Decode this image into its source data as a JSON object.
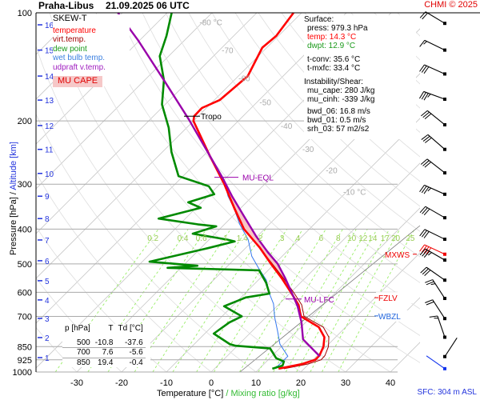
{
  "header": {
    "station": "Praha-Libus",
    "datetime": "21.09.2025 06 UTC",
    "credit": "CHMI © 2025"
  },
  "legend": {
    "title": "SKEW-T",
    "items": [
      {
        "label": "temperature",
        "color": "#ff0000"
      },
      {
        "label": "virt.temp.",
        "color": "#a00000"
      },
      {
        "label": "dew point",
        "color": "#1a9a1a"
      },
      {
        "label": "wet bulb temp.",
        "color": "#3a7fe0"
      },
      {
        "label": "udpraft v.temp.",
        "color": "#a020c0"
      }
    ],
    "cape_label": "MU CAPE"
  },
  "info": {
    "surface_title": "Surface:",
    "press": "press: 979.3 hPa",
    "temp": "temp: 14.3 °C",
    "dwpt": "dwpt: 12.9 °C",
    "tconv": "t-conv: 35.6 °C",
    "tmxfc": "t-mxfc: 33.4 °C",
    "instab_title": "Instability/Shear:",
    "mu_cape": "mu_cape: 280 J/kg",
    "mu_cinh": "mu_cinh: -339 J/kg",
    "bwd_06": "bwd_06: 16.8 m/s",
    "bwd_01": "bwd_01: 0.5 m/s",
    "srh_03": "srh_03: 57 m2/s2"
  },
  "table": {
    "headers": [
      "p [hPa]",
      "T",
      "Td [°C]"
    ],
    "rows": [
      [
        "500",
        "-10.8",
        "-37.6"
      ],
      [
        "700",
        "7.6",
        "-5.6"
      ],
      [
        "850",
        "19.4",
        "-0.4"
      ]
    ]
  },
  "footer": {
    "xlabel_temp": "Temperature [°C]",
    "xlabel_sep": "/",
    "xlabel_mix": "Mixing ratio [g/kg]",
    "sfc": "SFC: 304 m ASL"
  },
  "yaxis": {
    "pressure_label": "Pressure [hPa]",
    "sep": "/",
    "altitude_label": "Altitude [km]"
  },
  "chart_data": {
    "type": "skew-t",
    "title": "Praha-Libus 21.09.2025 06 UTC",
    "xlabel": "Temperature [°C] / Mixing ratio [g/kg]",
    "ylabel": "Pressure [hPa] / Altitude [km]",
    "pressure_ticks": [
      100,
      200,
      300,
      400,
      500,
      600,
      700,
      850,
      925,
      1000
    ],
    "pressure_tick_labels": [
      "100",
      "200",
      "300",
      "400",
      "500",
      "600",
      "700",
      "850",
      "925",
      "1000"
    ],
    "temp_ticks": [
      -30,
      -20,
      -10,
      0,
      10,
      20,
      30,
      40
    ],
    "temp_tick_labels": [
      "-30",
      "-20",
      "-10",
      "0",
      "10",
      "20",
      "30",
      "40"
    ],
    "ylim": [
      1000,
      100
    ],
    "altitude_ticks": [
      {
        "km": "1",
        "p": 912
      },
      {
        "km": "2",
        "p": 802
      },
      {
        "km": "3",
        "p": 709
      },
      {
        "km": "4",
        "p": 630
      },
      {
        "km": "5",
        "p": 557
      },
      {
        "km": "6",
        "p": 490
      },
      {
        "km": "7",
        "p": 429
      },
      {
        "km": "8",
        "p": 374
      },
      {
        "km": "9",
        "p": 324
      },
      {
        "km": "10",
        "p": 280
      },
      {
        "km": "11",
        "p": 240
      },
      {
        "km": "12",
        "p": 206
      },
      {
        "km": "13",
        "p": 175
      },
      {
        "km": "14",
        "p": 150
      },
      {
        "km": "15",
        "p": 127
      },
      {
        "km": "16",
        "p": 108
      }
    ],
    "isotherm_labels": [
      {
        "t": -80,
        "text": "-80 °C"
      },
      {
        "t": -70,
        "text": "-70"
      },
      {
        "t": -60,
        "text": "-60"
      },
      {
        "t": -50,
        "text": "-50"
      },
      {
        "t": -40,
        "text": "-40"
      },
      {
        "t": -30,
        "text": "-30"
      },
      {
        "t": -20,
        "text": "-20"
      },
      {
        "t": -10,
        "text": "-10 °C"
      }
    ],
    "mixing_ratios": [
      {
        "w": 0.2,
        "text": "0.2"
      },
      {
        "w": 0.4,
        "text": "0.4"
      },
      {
        "w": 0.6,
        "text": "0.6"
      },
      {
        "w": 1,
        "text": "1"
      },
      {
        "w": 1.4,
        "text": "1.4"
      },
      {
        "w": 2,
        "text": "2"
      },
      {
        "w": 3,
        "text": "3"
      },
      {
        "w": 4,
        "text": "4"
      },
      {
        "w": 6,
        "text": "6"
      },
      {
        "w": 8,
        "text": "8"
      },
      {
        "w": 10,
        "text": "10"
      },
      {
        "w": 12,
        "text": "12"
      },
      {
        "w": 14,
        "text": "14"
      },
      {
        "w": 17,
        "text": "17"
      },
      {
        "w": 20,
        "text": "20"
      },
      {
        "w": 25,
        "text": "25"
      }
    ],
    "series": [
      {
        "name": "temperature",
        "color": "#ff0000",
        "points": [
          [
            979,
            14.3
          ],
          [
            950,
            18.5
          ],
          [
            925,
            20.5
          ],
          [
            900,
            20.5
          ],
          [
            850,
            19.4
          ],
          [
            800,
            17.5
          ],
          [
            750,
            14
          ],
          [
            700,
            7.6
          ],
          [
            650,
            4.5
          ],
          [
            600,
            0
          ],
          [
            550,
            -5
          ],
          [
            500,
            -10.8
          ],
          [
            450,
            -17
          ],
          [
            400,
            -24.6
          ],
          [
            350,
            -31.4
          ],
          [
            300,
            -39
          ],
          [
            250,
            -48.6
          ],
          [
            200,
            -60
          ],
          [
            194,
            -60.9
          ],
          [
            184,
            -61
          ],
          [
            175,
            -58.8
          ],
          [
            150,
            -57.9
          ],
          [
            125,
            -61
          ],
          [
            116,
            -60.5
          ],
          [
            100,
            -61.8
          ]
        ]
      },
      {
        "name": "virtual temperature",
        "color": "#a00000",
        "points": [
          [
            979,
            15.5
          ],
          [
            950,
            19.8
          ],
          [
            925,
            21.8
          ],
          [
            900,
            21.7
          ],
          [
            850,
            20.5
          ],
          [
            800,
            18.5
          ],
          [
            750,
            15
          ],
          [
            700,
            8.3
          ],
          [
            650,
            5.2
          ],
          [
            600,
            0.6
          ],
          [
            550,
            -4.6
          ],
          [
            500,
            -10.5
          ],
          [
            400,
            -24.5
          ],
          [
            300,
            -39
          ]
        ]
      },
      {
        "name": "dew point",
        "color": "#008a00",
        "points": [
          [
            979,
            12.9
          ],
          [
            960,
            14.5
          ],
          [
            935,
            13.9
          ],
          [
            915,
            11.4
          ],
          [
            860,
            7.9
          ],
          [
            845,
            -0.4
          ],
          [
            836,
            -2.1
          ],
          [
            782,
            -8
          ],
          [
            728,
            -7
          ],
          [
            700,
            -5.6
          ],
          [
            656,
            -11.8
          ],
          [
            620,
            -8.9
          ],
          [
            605,
            -4.5
          ],
          [
            564,
            -7.7
          ],
          [
            521,
            -12
          ],
          [
            513,
            -33
          ],
          [
            506,
            -26.8
          ],
          [
            493,
            -38.4
          ],
          [
            452,
            -28.4
          ],
          [
            433,
            -23.9
          ],
          [
            428,
            -26
          ],
          [
            412,
            -35
          ],
          [
            393,
            -31.4
          ],
          [
            388,
            -36
          ],
          [
            374,
            -46
          ],
          [
            349,
            -39
          ],
          [
            337,
            -43
          ],
          [
            320,
            -39
          ],
          [
            304,
            -42
          ],
          [
            285,
            -51
          ],
          [
            244,
            -58
          ],
          [
            209,
            -64
          ],
          [
            180,
            -70.7
          ],
          [
            154,
            -75.7
          ],
          [
            132,
            -82
          ],
          [
            116,
            -85
          ],
          [
            100,
            -89
          ]
        ]
      },
      {
        "name": "wet bulb temperature",
        "color": "#3377ee",
        "points": [
          [
            979,
            13.5
          ],
          [
            904,
            13.6
          ],
          [
            836,
            9.1
          ],
          [
            766,
            5.5
          ],
          [
            705,
            2
          ],
          [
            646,
            -1.3
          ],
          [
            605,
            -4.5
          ],
          [
            555,
            -8.2
          ],
          [
            513,
            -12.7
          ],
          [
            476,
            -16.8
          ],
          [
            428,
            -21.3
          ],
          [
            388,
            -26.6
          ],
          [
            349,
            -31.6
          ],
          [
            324,
            -35.5
          ],
          [
            292,
            -40
          ]
        ]
      },
      {
        "name": "updraft virtual temperature",
        "color": "#9900aa",
        "points": [
          [
            904,
            20.7
          ],
          [
            811,
            13.2
          ],
          [
            728,
            9.1
          ],
          [
            656,
            4.6
          ],
          [
            615,
            1.4
          ],
          [
            547,
            -4.5
          ],
          [
            500,
            -9.3
          ],
          [
            464,
            -14.1
          ],
          [
            418,
            -20.4
          ],
          [
            368,
            -27.5
          ],
          [
            324,
            -34.6
          ],
          [
            287,
            -41
          ],
          [
            198,
            -61.4
          ],
          [
            154,
            -75.7
          ],
          [
            119,
            -90.5
          ],
          [
            100,
            -101
          ]
        ]
      }
    ],
    "cape": {
      "lfc_p": 620,
      "eql_p": 287,
      "color": "#f8c4c4"
    },
    "annotations": [
      {
        "text": "Tropo",
        "p": 194,
        "color": "#000000"
      },
      {
        "text": "MU-EQL",
        "p": 287,
        "color": "#9900aa"
      },
      {
        "text": "MU-LFC",
        "p": 620,
        "color": "#9900aa"
      },
      {
        "text": "MXWS",
        "p": 470,
        "color": "#ee0000"
      },
      {
        "text": "FZLV",
        "p": 621,
        "color": "#ee0000"
      },
      {
        "text": "WBZL",
        "p": 698,
        "color": "#2266dd"
      }
    ],
    "wind": [
      {
        "p": 107,
        "dir": 239,
        "kt": 20
      },
      {
        "p": 127,
        "dir": 244,
        "kt": 15
      },
      {
        "p": 148,
        "dir": 246,
        "kt": 30
      },
      {
        "p": 174,
        "dir": 250,
        "kt": 35
      },
      {
        "p": 205,
        "dir": 231,
        "kt": 30
      },
      {
        "p": 240,
        "dir": 229,
        "kt": 30
      },
      {
        "p": 279,
        "dir": 232,
        "kt": 30
      },
      {
        "p": 320,
        "dir": 246,
        "kt": 35
      },
      {
        "p": 372,
        "dir": 240,
        "kt": 30
      },
      {
        "p": 427,
        "dir": 244,
        "kt": 30
      },
      {
        "p": 470,
        "dir": 245,
        "kt": 40,
        "max": true
      },
      {
        "p": 488,
        "dir": 240,
        "kt": 35
      },
      {
        "p": 555,
        "dir": 235,
        "kt": 30
      },
      {
        "p": 624,
        "dir": 213,
        "kt": 25
      },
      {
        "p": 710,
        "dir": 213,
        "kt": 20
      },
      {
        "p": 800,
        "dir": 199,
        "kt": 15
      },
      {
        "p": 906,
        "dir": 147,
        "kt": 2
      },
      {
        "p": 979,
        "dir": 235,
        "kt": 3,
        "surface": true
      }
    ]
  }
}
